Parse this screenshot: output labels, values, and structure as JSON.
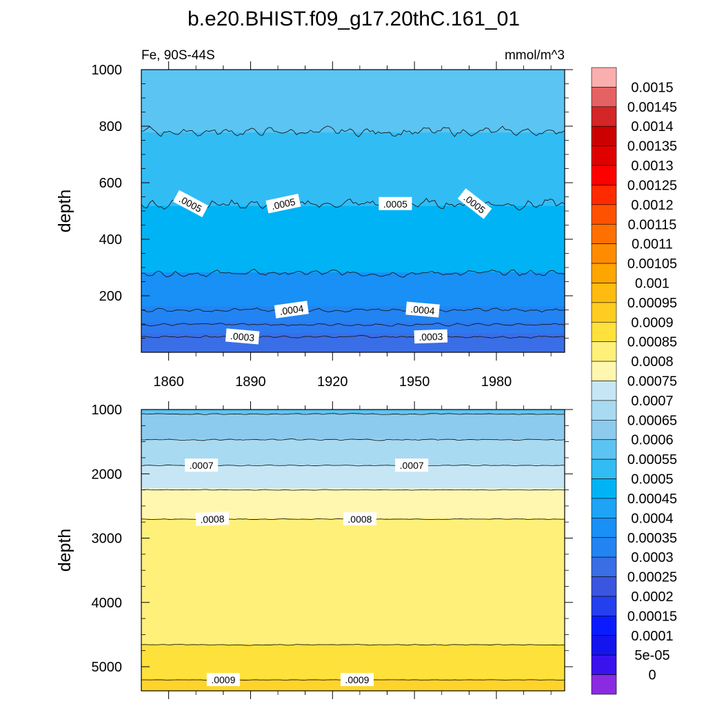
{
  "title": "b.e20.BHIST.f09_g17.20thC.161_01",
  "subtitle_left": "Fe, 90S-44S",
  "subtitle_right": "mmol/m^3",
  "chart_data": [
    {
      "type": "heatmap",
      "panel": "upper",
      "xlabel": "",
      "ylabel": "depth",
      "xlim": [
        1850,
        2005
      ],
      "ylim": [
        1000,
        0
      ],
      "xticks": [
        1860,
        1890,
        1920,
        1950,
        1980
      ],
      "xtick_labels": [
        "1860",
        "1890",
        "1920",
        "1950",
        "1980"
      ],
      "yticks": [
        200,
        400,
        600,
        800,
        1000
      ],
      "ytick_labels": [
        "200",
        "400",
        "600",
        "800",
        "1000"
      ],
      "bands": [
        {
          "from": 0,
          "to": 70,
          "color": "#3a6ee6"
        },
        {
          "from": 70,
          "to": 110,
          "color": "#2d7af0"
        },
        {
          "from": 110,
          "to": 165,
          "color": "#2284f2"
        },
        {
          "from": 165,
          "to": 285,
          "color": "#1890f6"
        },
        {
          "from": 285,
          "to": 520,
          "color": "#00b3f5"
        },
        {
          "from": 520,
          "to": 780,
          "color": "#32bcf4"
        },
        {
          "from": 780,
          "to": 1000,
          "color": "#5bc4f2"
        }
      ],
      "contours": [
        {
          "depth": 55,
          "amp": 5,
          "label": ".0003",
          "label_at": [
            1887,
            1956
          ],
          "label_rot": [
            5,
            -2
          ]
        },
        {
          "depth": 98,
          "amp": 6
        },
        {
          "depth": 150,
          "amp": 8,
          "label": ".0004",
          "label_at": [
            1905,
            1953
          ],
          "label_rot": [
            -8,
            5
          ]
        },
        {
          "depth": 280,
          "amp": 14
        },
        {
          "depth": 525,
          "amp": 24,
          "label": ".0005",
          "label_at": [
            1868,
            1902,
            1943,
            1972
          ],
          "label_rot": [
            28,
            -12,
            0,
            38
          ]
        },
        {
          "depth": 780,
          "amp": 20
        }
      ]
    },
    {
      "type": "heatmap",
      "panel": "lower",
      "xlabel": "",
      "ylabel": "depth",
      "xlim": [
        1850,
        2005
      ],
      "ylim": [
        1000,
        5375
      ],
      "xticks": [
        1860,
        1890,
        1920,
        1950,
        1980
      ],
      "yticks": [
        1000,
        2000,
        3000,
        4000,
        5000
      ],
      "ytick_labels": [
        "1000",
        "2000",
        "3000",
        "4000",
        "5000"
      ],
      "bands": [
        {
          "from": 1000,
          "to": 1070,
          "color": "#5bc4f2"
        },
        {
          "from": 1070,
          "to": 1470,
          "color": "#8ccbee"
        },
        {
          "from": 1470,
          "to": 1870,
          "color": "#a8daf2"
        },
        {
          "from": 1870,
          "to": 2240,
          "color": "#c6e6f6"
        },
        {
          "from": 2240,
          "to": 2700,
          "color": "#fff7b0"
        },
        {
          "from": 2700,
          "to": 4660,
          "color": "#fff07a"
        },
        {
          "from": 4660,
          "to": 5200,
          "color": "#ffe13c"
        },
        {
          "from": 5200,
          "to": 5375,
          "color": "#ffd42a"
        }
      ],
      "contours": [
        {
          "depth": 1070,
          "amp": 10
        },
        {
          "depth": 1470,
          "amp": 12
        },
        {
          "depth": 1870,
          "amp": 8,
          "label": ".0007",
          "label_at": [
            1872,
            1949
          ],
          "label_rot": [
            0,
            0
          ]
        },
        {
          "depth": 2250,
          "amp": 6
        },
        {
          "depth": 2705,
          "amp": 8,
          "label": ".0008",
          "label_at": [
            1876,
            1930
          ],
          "label_rot": [
            -2,
            0
          ]
        },
        {
          "depth": 4660,
          "amp": 10
        },
        {
          "depth": 5205,
          "amp": 4,
          "label": ".0009",
          "label_at": [
            1880,
            1929
          ],
          "label_rot": [
            0,
            0
          ]
        }
      ]
    }
  ],
  "colorbar": {
    "labels": [
      "0.0015",
      "0.00145",
      "0.0014",
      "0.00135",
      "0.0013",
      "0.00125",
      "0.0012",
      "0.00115",
      "0.0011",
      "0.00105",
      "0.001",
      "0.00095",
      "0.0009",
      "0.00085",
      "0.0008",
      "0.00075",
      "0.0007",
      "0.00065",
      "0.0006",
      "0.00055",
      "0.0005",
      "0.00045",
      "0.0004",
      "0.00035",
      "0.0003",
      "0.00025",
      "0.0002",
      "0.00015",
      "0.0001",
      "5e-05",
      "0"
    ],
    "colors": [
      "#fbaeae",
      "#e66262",
      "#d42626",
      "#cc0000",
      "#e00000",
      "#ff0000",
      "#ff2a00",
      "#ff5200",
      "#ff7000",
      "#ff8c00",
      "#ffa500",
      "#ffbb10",
      "#ffcc22",
      "#ffe13c",
      "#fff07a",
      "#fff7b0",
      "#c6e6f6",
      "#a8daf2",
      "#8ccbee",
      "#5bc4f2",
      "#32bcf4",
      "#00b3f5",
      "#1ea3f6",
      "#1890f6",
      "#2284f2",
      "#3a6ee6",
      "#3a56e0",
      "#2440ee",
      "#0a1cff",
      "#1414ee",
      "#3a12ee",
      "#8a2be2"
    ]
  }
}
